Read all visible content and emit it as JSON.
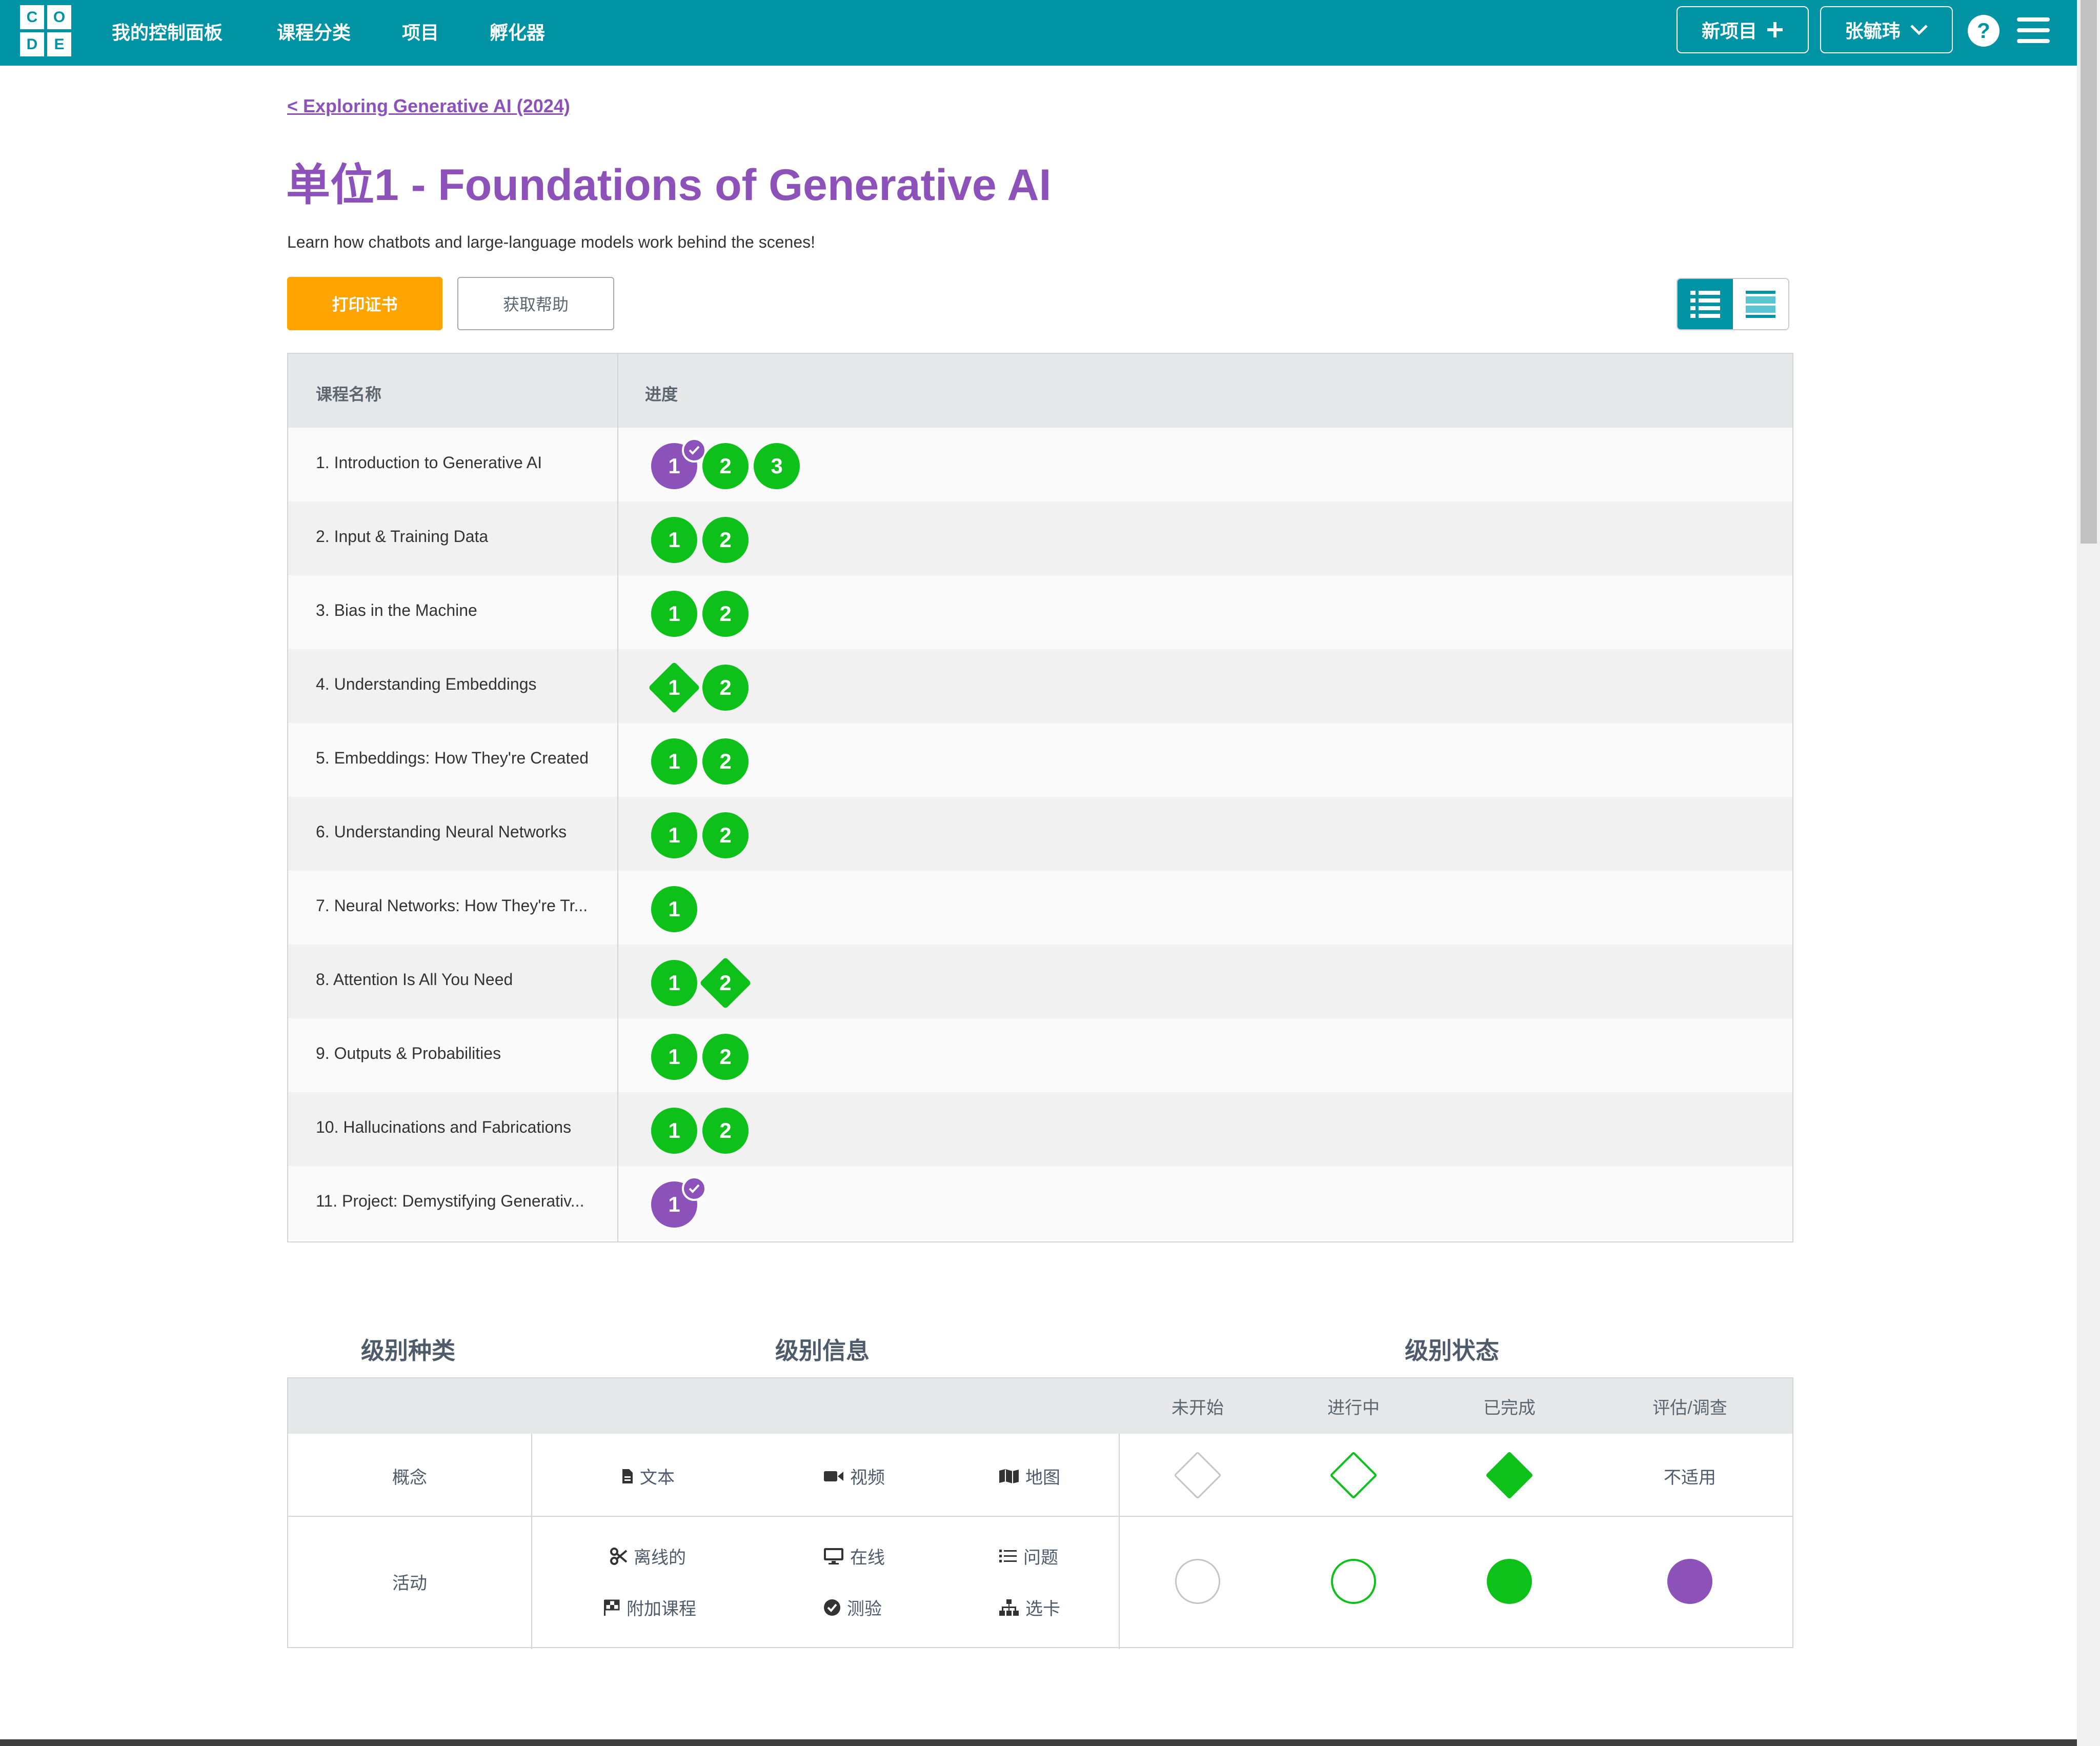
{
  "header": {
    "logo_letters": [
      "C",
      "O",
      "D",
      "E"
    ],
    "nav": [
      "我的控制面板",
      "课程分类",
      "项目",
      "孵化器"
    ],
    "new_project": "新项目",
    "user_name": "张毓玮",
    "help_label": "?"
  },
  "intro": {
    "back_link": "< Exploring Generative AI (2024)",
    "title": "单位1 - Foundations of Generative AI",
    "description": "Learn how chatbots and large-language models work behind the scenes!",
    "print_certificate": "打印证书",
    "get_help": "获取帮助"
  },
  "progress_table": {
    "col_name": "课程名称",
    "col_progress": "进度",
    "lessons": [
      {
        "name": "1. Introduction to Generative AI",
        "levels": [
          {
            "n": "1",
            "kind": "circle",
            "color": "purple",
            "check": true
          },
          {
            "n": "2",
            "kind": "circle",
            "color": "green"
          },
          {
            "n": "3",
            "kind": "circle",
            "color": "green"
          }
        ]
      },
      {
        "name": "2. Input & Training Data",
        "levels": [
          {
            "n": "1",
            "kind": "circle",
            "color": "green"
          },
          {
            "n": "2",
            "kind": "circle",
            "color": "green"
          }
        ]
      },
      {
        "name": "3. Bias in the Machine",
        "levels": [
          {
            "n": "1",
            "kind": "circle",
            "color": "green"
          },
          {
            "n": "2",
            "kind": "circle",
            "color": "green"
          }
        ]
      },
      {
        "name": "4. Understanding Embeddings",
        "levels": [
          {
            "n": "1",
            "kind": "diamond",
            "color": "green"
          },
          {
            "n": "2",
            "kind": "circle",
            "color": "green"
          }
        ]
      },
      {
        "name": "5. Embeddings: How They're Created",
        "levels": [
          {
            "n": "1",
            "kind": "circle",
            "color": "green"
          },
          {
            "n": "2",
            "kind": "circle",
            "color": "green"
          }
        ]
      },
      {
        "name": "6. Understanding Neural Networks",
        "levels": [
          {
            "n": "1",
            "kind": "circle",
            "color": "green"
          },
          {
            "n": "2",
            "kind": "circle",
            "color": "green"
          }
        ]
      },
      {
        "name": "7. Neural Networks: How They're Tr...",
        "levels": [
          {
            "n": "1",
            "kind": "circle",
            "color": "green"
          }
        ]
      },
      {
        "name": "8. Attention Is All You Need",
        "levels": [
          {
            "n": "1",
            "kind": "circle",
            "color": "green"
          },
          {
            "n": "2",
            "kind": "diamond",
            "color": "green"
          }
        ]
      },
      {
        "name": "9. Outputs & Probabilities",
        "levels": [
          {
            "n": "1",
            "kind": "circle",
            "color": "green"
          },
          {
            "n": "2",
            "kind": "circle",
            "color": "green"
          }
        ]
      },
      {
        "name": "10. Hallucinations and Fabrications",
        "levels": [
          {
            "n": "1",
            "kind": "circle",
            "color": "green"
          },
          {
            "n": "2",
            "kind": "circle",
            "color": "green"
          }
        ]
      },
      {
        "name": "11. Project: Demystifying Generativ...",
        "levels": [
          {
            "n": "1",
            "kind": "circle",
            "color": "purple",
            "check": true
          }
        ]
      }
    ]
  },
  "key": {
    "heading_types": "级别种类",
    "heading_info": "级别信息",
    "heading_status": "级别状态",
    "status_headers": [
      "未开始",
      "进行中",
      "已完成",
      "评估/调查"
    ],
    "concept_label": "概念",
    "activity_label": "活动",
    "concept_info": [
      "文本",
      "视频",
      "地图"
    ],
    "activity_info": [
      "离线的",
      "在线",
      "问题",
      "附加课程",
      "测验",
      "选卡"
    ],
    "not_applicable": "不适用"
  },
  "colors": {
    "brand_teal": "#0093a4",
    "purple": "#8c52ba",
    "green": "#0ec01a",
    "orange": "#ffa400"
  }
}
